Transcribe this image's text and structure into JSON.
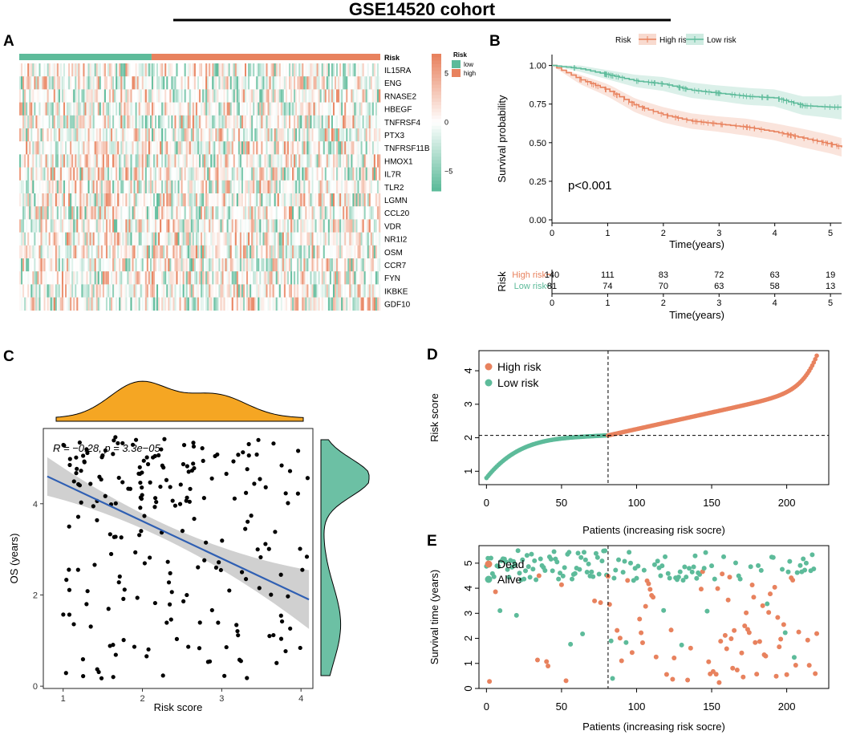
{
  "title": "GSE14520 cohort",
  "colors": {
    "high": "#E8825E",
    "low": "#5DBB9A",
    "density_top": "#F5A623",
    "density_right": "#6CC0A4",
    "fit_line": "#2F5FB3",
    "ci_band": "#C8C8C8"
  },
  "panels": {
    "A": "A",
    "B": "B",
    "C": "C",
    "D": "D",
    "E": "E"
  },
  "chart_data": [
    {
      "id": "A",
      "type": "heatmap",
      "annotation_row_label": "Risk",
      "genes": [
        "IL15RA",
        "ENG",
        "RNASE2",
        "HBEGF",
        "TNFRSF4",
        "PTX3",
        "TNFRSF11B",
        "HMOX1",
        "IL7R",
        "TLR2",
        "LGMN",
        "CCL20",
        "VDR",
        "NR1I2",
        "OSM",
        "CCR7",
        "FYN",
        "IKBKE",
        "GDF10"
      ],
      "n_low": 81,
      "n_high": 140,
      "color_scale": {
        "ticks": [
          5,
          0,
          -5
        ],
        "tick_labels": [
          "5",
          "0",
          "−5"
        ],
        "range": [
          -7,
          7
        ]
      },
      "legend": {
        "title": "Risk",
        "entries": [
          "low",
          "high"
        ]
      }
    },
    {
      "id": "B",
      "type": "line",
      "legend_title": "Risk",
      "series": [
        {
          "name": "High risk",
          "x": [
            0,
            0.5,
            1,
            1.5,
            2,
            2.5,
            3,
            3.5,
            4,
            4.5,
            5,
            5.2
          ],
          "y": [
            1.0,
            0.91,
            0.84,
            0.74,
            0.68,
            0.64,
            0.62,
            0.6,
            0.57,
            0.53,
            0.49,
            0.47
          ]
        },
        {
          "name": "Low risk",
          "x": [
            0,
            0.5,
            1,
            1.5,
            2,
            2.5,
            3,
            3.5,
            4,
            4.5,
            5,
            5.2
          ],
          "y": [
            1.0,
            0.98,
            0.94,
            0.9,
            0.88,
            0.84,
            0.82,
            0.8,
            0.79,
            0.74,
            0.73,
            0.73
          ]
        }
      ],
      "ci_halfwidth": {
        "High risk": [
          0.0,
          0.03,
          0.04,
          0.045,
          0.05,
          0.05,
          0.05,
          0.055,
          0.055,
          0.06,
          0.06,
          0.06
        ],
        "Low risk": [
          0.0,
          0.02,
          0.03,
          0.04,
          0.045,
          0.05,
          0.05,
          0.055,
          0.055,
          0.06,
          0.07,
          0.08
        ]
      },
      "annotation": "p<0.001",
      "xlabel": "Time(years)",
      "ylabel": "Survival probability",
      "xlim": [
        0,
        5.2
      ],
      "ylim": [
        0,
        1.05
      ],
      "xticks": [
        0,
        1,
        2,
        3,
        4,
        5
      ],
      "yticks": [
        0.0,
        0.25,
        0.5,
        0.75,
        1.0
      ],
      "ytick_labels": [
        "0.00",
        "0.25",
        "0.50",
        "0.75",
        "1.00"
      ],
      "risk_table": {
        "title": "Risk",
        "xlabel": "Time(years)",
        "times": [
          0,
          1,
          2,
          3,
          4,
          5
        ],
        "rows": [
          {
            "label": "High risk",
            "counts": [
              140,
              111,
              83,
              72,
              63,
              19
            ]
          },
          {
            "label": "Low risk",
            "counts": [
              81,
              74,
              70,
              63,
              58,
              13
            ]
          }
        ]
      }
    },
    {
      "id": "C",
      "type": "scatter",
      "xlabel": "Risk score",
      "ylabel": "OS (years)",
      "xlim": [
        0.75,
        4.15
      ],
      "ylim": [
        -0.05,
        5.65
      ],
      "xticks": [
        1,
        2,
        3,
        4
      ],
      "yticks": [
        0,
        2,
        4
      ],
      "annotation": "R = −0.28, p = 3.3e−05",
      "fit": {
        "x": [
          0.8,
          4.1
        ],
        "y": [
          4.6,
          1.9
        ]
      },
      "n_points": 221
    },
    {
      "id": "D",
      "type": "scatter",
      "xlabel": "Patients (increasing risk socre)",
      "ylabel": "Risk score",
      "xlim": [
        -5,
        228
      ],
      "ylim": [
        0.6,
        4.6
      ],
      "xticks": [
        0,
        50,
        100,
        150,
        200
      ],
      "yticks": [
        1,
        2,
        3,
        4
      ],
      "cutoff_index": 81,
      "cutoff_score": 2.07,
      "score_range": [
        0.8,
        4.45
      ],
      "legend": [
        "High risk",
        "Low risk"
      ]
    },
    {
      "id": "E",
      "type": "scatter",
      "xlabel": "Patients (increasing risk socre)",
      "ylabel": "Survival time (years)",
      "xlim": [
        -5,
        228
      ],
      "ylim": [
        0,
        5.7
      ],
      "xticks": [
        0,
        50,
        100,
        150,
        200
      ],
      "yticks": [
        0,
        1,
        2,
        3,
        4,
        5
      ],
      "cutoff_index": 81,
      "legend": [
        "Dead",
        "Alive"
      ]
    }
  ]
}
